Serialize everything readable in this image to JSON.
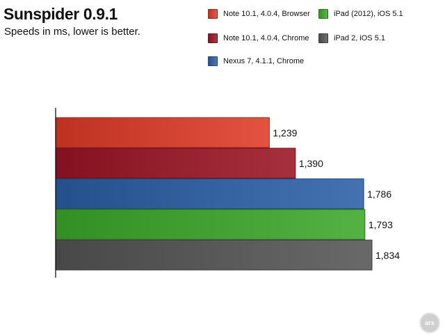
{
  "chart_data": {
    "type": "bar",
    "orientation": "horizontal",
    "title": "Sunspider 0.9.1",
    "subtitle": "Speeds in ms, lower is better.",
    "xlabel": "",
    "ylabel": "",
    "xlim": [
      0,
      1834
    ],
    "grid": false,
    "legend_placement": "top-right",
    "series": [
      {
        "name": "Note 10.1, 4.0.4, Browser",
        "value": 1239,
        "value_label": "1,239",
        "color": "#e03a26"
      },
      {
        "name": "Note 10.1, 4.0.4, Chrome",
        "value": 1390,
        "value_label": "1,390",
        "color": "#9b1424"
      },
      {
        "name": "Nexus 7, 4.1.1, Chrome",
        "value": 1786,
        "value_label": "1,786",
        "color": "#2a5fa6"
      },
      {
        "name": "iPad (2012), iOS 5.1",
        "value": 1793,
        "value_label": "1,793",
        "color": "#3ca829"
      },
      {
        "name": "iPad 2, iOS 5.1",
        "value": 1834,
        "value_label": "1,834",
        "color": "#555555"
      }
    ]
  },
  "watermark": {
    "text": "ars"
  }
}
